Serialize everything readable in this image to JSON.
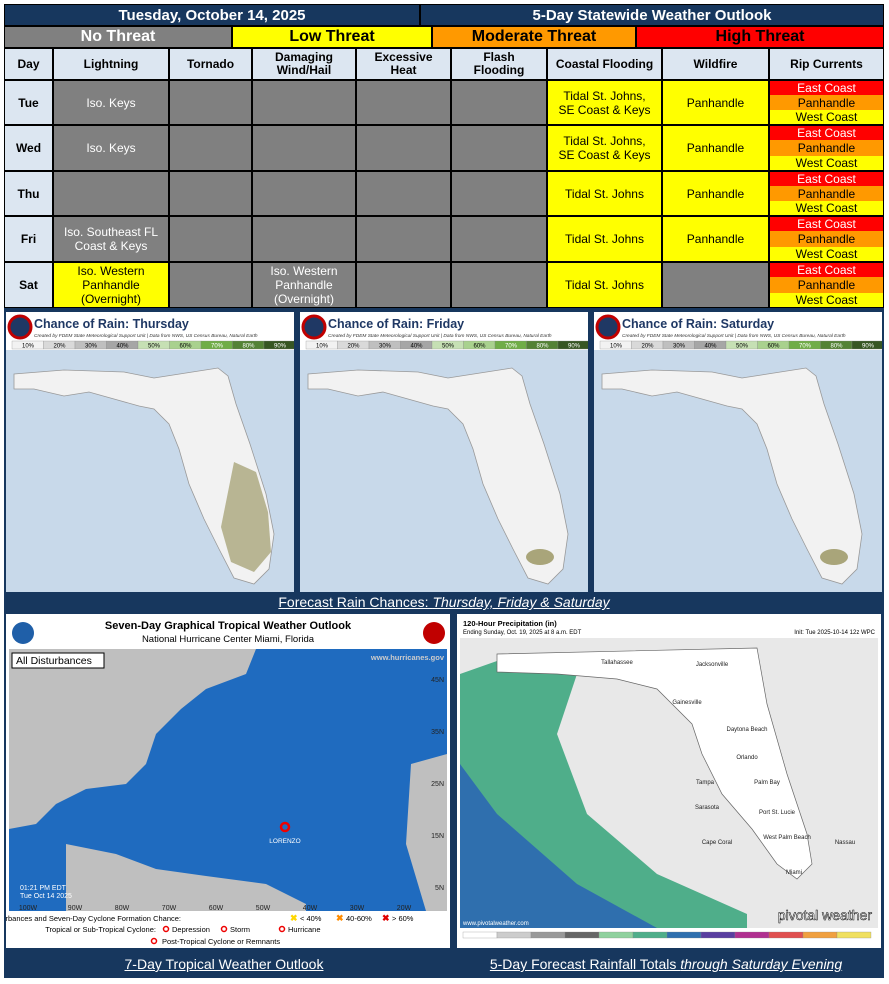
{
  "header": {
    "date": "Tuesday, October 14, 2025",
    "title": "5-Day Statewide Weather Outlook"
  },
  "legend": [
    {
      "label": "No Threat",
      "color": "#808080"
    },
    {
      "label": "Low Threat",
      "color": "#ffff00"
    },
    {
      "label": "Moderate Threat",
      "color": "#ff9900"
    },
    {
      "label": "High Threat",
      "color": "#ff0000"
    }
  ],
  "table": {
    "columns": [
      "Day",
      "Lightning",
      "Tornado",
      "Damaging\nWind/Hail",
      "Excessive\nHeat",
      "Flash\nFlooding",
      "Coastal Flooding",
      "Wildfire",
      "Rip Currents"
    ],
    "rows": [
      {
        "day": "Tue",
        "cells": [
          {
            "text": "Iso. Keys",
            "level": 0
          },
          {
            "level": 0
          },
          {
            "level": 0
          },
          {
            "level": 0
          },
          {
            "level": 0
          },
          {
            "text": "Tidal St. Johns,\nSE Coast & Keys",
            "level": 1
          },
          {
            "text": "Panhandle",
            "level": 1
          }
        ],
        "rip_currents": [
          {
            "text": "East Coast",
            "level": 3
          },
          {
            "text": "Panhandle",
            "level": 2
          },
          {
            "text": "West Coast",
            "level": 1
          }
        ]
      },
      {
        "day": "Wed",
        "cells": [
          {
            "text": "Iso. Keys",
            "level": 0
          },
          {
            "level": 0
          },
          {
            "level": 0
          },
          {
            "level": 0
          },
          {
            "level": 0
          },
          {
            "text": "Tidal St. Johns,\nSE Coast & Keys",
            "level": 1
          },
          {
            "text": "Panhandle",
            "level": 1
          }
        ],
        "rip_currents": [
          {
            "text": "East Coast",
            "level": 3
          },
          {
            "text": "Panhandle",
            "level": 2
          },
          {
            "text": "West Coast",
            "level": 1
          }
        ]
      },
      {
        "day": "Thu",
        "cells": [
          {
            "level": 0
          },
          {
            "level": 0
          },
          {
            "level": 0
          },
          {
            "level": 0
          },
          {
            "level": 0
          },
          {
            "text": "Tidal St. Johns",
            "level": 1
          },
          {
            "text": "Panhandle",
            "level": 1
          }
        ],
        "rip_currents": [
          {
            "text": "East Coast",
            "level": 3
          },
          {
            "text": "Panhandle",
            "level": 2
          },
          {
            "text": "West Coast",
            "level": 1
          }
        ]
      },
      {
        "day": "Fri",
        "cells": [
          {
            "text": "Iso. Southeast FL\nCoast & Keys",
            "level": 0
          },
          {
            "level": 0
          },
          {
            "level": 0
          },
          {
            "level": 0
          },
          {
            "level": 0
          },
          {
            "text": "Tidal St. Johns",
            "level": 1
          },
          {
            "text": "Panhandle",
            "level": 1
          }
        ],
        "rip_currents": [
          {
            "text": "East Coast",
            "level": 3
          },
          {
            "text": "Panhandle",
            "level": 2
          },
          {
            "text": "West Coast",
            "level": 1
          }
        ]
      },
      {
        "day": "Sat",
        "cells": [
          {
            "text": "Iso. Western\nPanhandle\n(Overnight)",
            "level": 1
          },
          {
            "level": 0
          },
          {
            "text": "Iso. Western\nPanhandle\n(Overnight)",
            "level": 0
          },
          {
            "level": 0
          },
          {
            "level": 0
          },
          {
            "text": "Tidal St. Johns",
            "level": 1
          },
          {
            "level": 0
          }
        ],
        "rip_currents": [
          {
            "text": "East Coast",
            "level": 3
          },
          {
            "text": "Panhandle",
            "level": 2
          },
          {
            "text": "West Coast",
            "level": 1
          }
        ]
      }
    ]
  },
  "rain_maps": {
    "panels": [
      {
        "title": "Chance of Rain: Thursday"
      },
      {
        "title": "Chance of Rain: Friday"
      },
      {
        "title": "Chance of Rain: Saturday"
      }
    ],
    "credit": "Created by FDEM State Meteorological Support Unit | Data from NWS, US Census Bureau, Natural Earth",
    "scale": [
      {
        "label": "10%",
        "color": "#f2f2f2"
      },
      {
        "label": "20%",
        "color": "#d9d9d9"
      },
      {
        "label": "30%",
        "color": "#bfbfbf"
      },
      {
        "label": "40%",
        "color": "#a6a6a6"
      },
      {
        "label": "50%",
        "color": "#c6e0b4"
      },
      {
        "label": "60%",
        "color": "#a9d18e"
      },
      {
        "label": "70%",
        "color": "#70ad47"
      },
      {
        "label": "80%",
        "color": "#548235"
      },
      {
        "label": "90%",
        "color": "#375623"
      }
    ],
    "caption": {
      "prefix": "Forecast Rain Chances: ",
      "italic": "Thursday, Friday & Saturday"
    }
  },
  "tropical": {
    "title": "Seven-Day Graphical Tropical Weather Outlook",
    "subtitle": "National Hurricane Center  Miami, Florida",
    "filter": "All Disturbances",
    "website": "www.hurricanes.gov",
    "lat_labels": [
      "45N",
      "35N",
      "25N",
      "15N",
      "5N"
    ],
    "lon_labels": [
      "100W",
      "90W",
      "80W",
      "70W",
      "60W",
      "50W",
      "40W",
      "30W",
      "20W"
    ],
    "storm": "LORENZO",
    "time": "01:21 PM EDT\nTue Oct 14 2025",
    "legend_line1": "Current Disturbances and Seven-Day Cyclone Formation Chance:",
    "chances": [
      "< 40%",
      "40-60%",
      "> 60%"
    ],
    "legend_line2": "Tropical or Sub-Tropical Cyclone:",
    "cyclones": [
      "Depression",
      "Storm",
      "Hurricane"
    ],
    "legend_line3": "Post-Tropical Cyclone or Remnants",
    "caption": "7-Day Tropical Weather Outlook"
  },
  "precip": {
    "title": "120-Hour Precipitation (in)",
    "subtitle": "Ending Sunday, Oct. 19, 2025 at 8 a.m. EDT",
    "init": "Init: Tue 2025-10-14 12z WPC",
    "cities": [
      "Tallahassee",
      "Jacksonville",
      "Gainesville",
      "Daytona Beach",
      "Orlando",
      "Tampa",
      "Palm Bay",
      "Sarasota",
      "Port St. Lucie",
      "Cape Coral",
      "West Palm Beach",
      "Miami",
      "Nassau"
    ],
    "brand": "pivotal weather",
    "website": "www.pivotalweather.com",
    "caption": {
      "prefix": "5-Day Forecast Rainfall Totals ",
      "italic": "through Saturday Evening"
    }
  }
}
